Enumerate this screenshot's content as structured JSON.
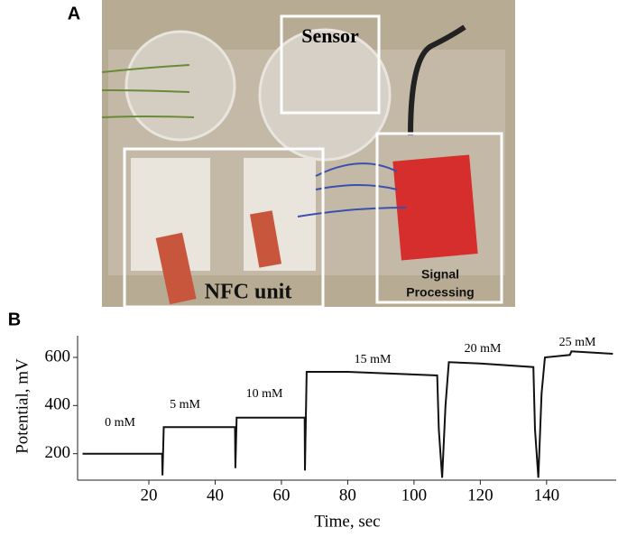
{
  "panel_labels": [
    "A",
    "B"
  ],
  "photo": {
    "labels": [
      "Sensor",
      "NFC unit",
      "Signal",
      "Processing"
    ]
  },
  "chart_data": {
    "type": "line",
    "xlabel": "Time, sec",
    "ylabel": "Potential, mV",
    "x": [
      0,
      24,
      24.1,
      24.5,
      46,
      46.1,
      46.5,
      67,
      67.1,
      67.6,
      80,
      107,
      107.5,
      108.5,
      109.5,
      110.5,
      120,
      136,
      136.5,
      137.5,
      138.5,
      139.5,
      147,
      147.5,
      160
    ],
    "values": [
      200,
      200,
      110,
      310,
      310,
      140,
      350,
      350,
      130,
      540,
      540,
      525,
      300,
      100,
      400,
      580,
      575,
      560,
      300,
      100,
      450,
      600,
      610,
      625,
      615
    ],
    "color": "#111111",
    "xlim": [
      -1.5,
      161
    ],
    "ylim": [
      90,
      690
    ],
    "xticks": [
      20,
      40,
      60,
      80,
      100,
      120,
      140
    ],
    "yticks": [
      200,
      400,
      600
    ],
    "grid": false,
    "annotations": [
      "0 mM",
      "5 mM",
      "10 mM",
      "15 mM",
      "20 mM",
      "25 mM"
    ]
  }
}
